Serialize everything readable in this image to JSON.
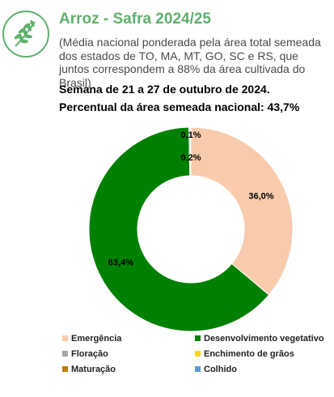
{
  "header": {
    "title": "Arroz - Safra 2024/25",
    "subtitle": "(Média nacional ponderada pela área total semeada dos estados de TO, MA, MT, GO, SC e RS, que juntos correspondem a 88% da área cultivada do Brasil)",
    "week": "Semana de 21 a 27 de outubro de 2024.",
    "area_pct": "Percentual da área semeada nacional: 43,7%",
    "logo_icon": "rice-grain-icon"
  },
  "colors": {
    "title": "#5fb06b",
    "ring": "#5fb06b"
  },
  "chart_data": {
    "type": "pie",
    "donut": true,
    "categories": [
      "Emergência",
      "Desenvolvimento vegetativo",
      "Floração",
      "Enchimento de grãos",
      "Maturação",
      "Colhido"
    ],
    "values": [
      36.0,
      63.4,
      0.2,
      0.1,
      0,
      0
    ],
    "labels": [
      "36,0%",
      "63,4%",
      "0,2%",
      "0,1%",
      "",
      ""
    ],
    "colors": [
      "#f8cbad",
      "#008000",
      "#a6a6a6",
      "#ffd700",
      "#c07a00",
      "#5b9bd5"
    ],
    "legend_position": "bottom"
  }
}
